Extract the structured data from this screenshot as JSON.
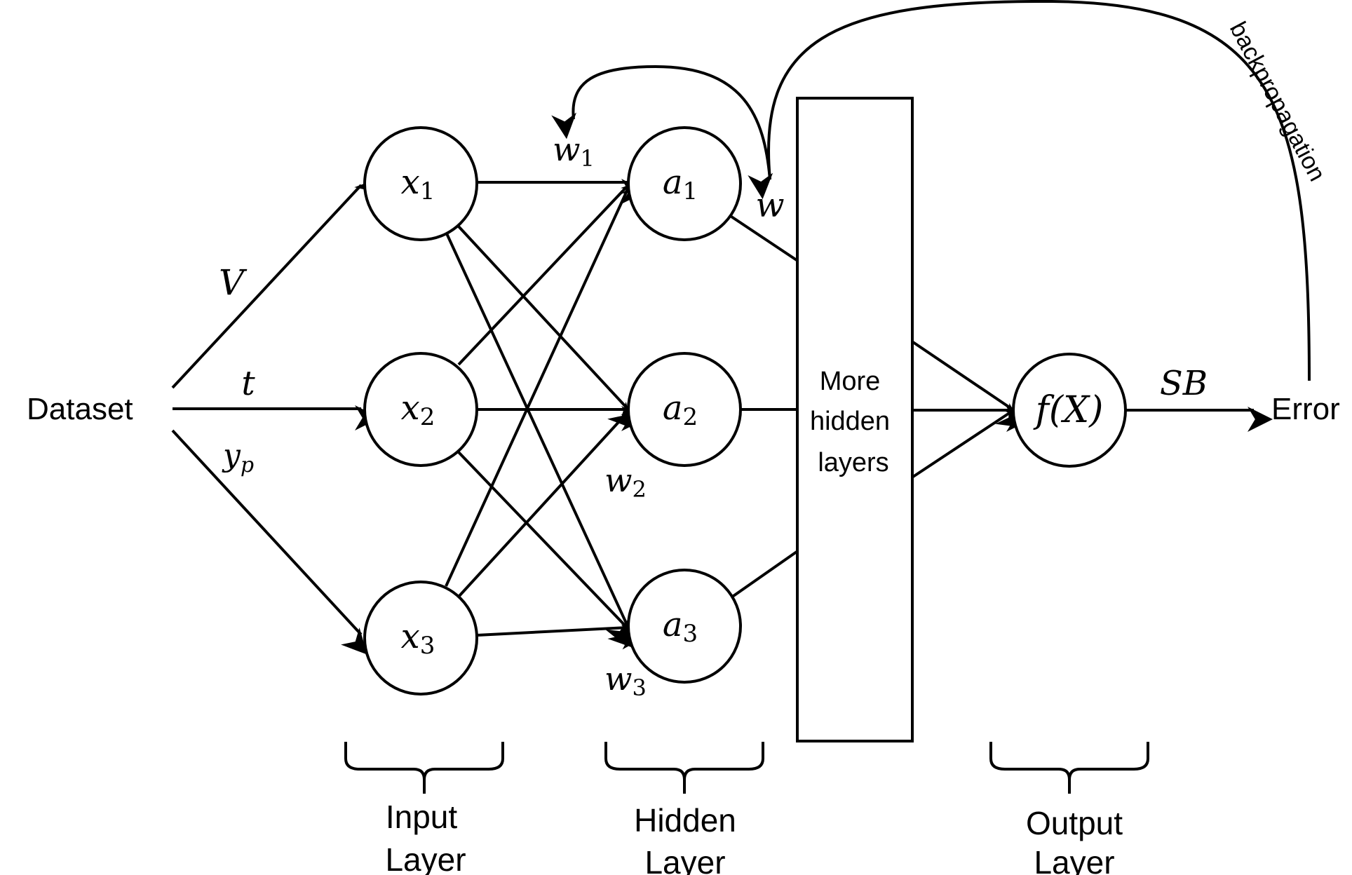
{
  "source_label": "Dataset",
  "input_edges": {
    "v_label": "V",
    "t_label": "t",
    "yp_label": {
      "base": "y",
      "sub": "p"
    }
  },
  "input_nodes": [
    {
      "base": "x",
      "sub": "1"
    },
    {
      "base": "x",
      "sub": "2"
    },
    {
      "base": "x",
      "sub": "3"
    }
  ],
  "hidden_nodes": [
    {
      "base": "a",
      "sub": "1"
    },
    {
      "base": "a",
      "sub": "2"
    },
    {
      "base": "a",
      "sub": "3"
    }
  ],
  "weights": {
    "w1": {
      "base": "w",
      "sub": "1"
    },
    "w2": {
      "base": "w",
      "sub": "2"
    },
    "w3": {
      "base": "w",
      "sub": "3"
    },
    "w": "w"
  },
  "more_hidden": {
    "line1": "More",
    "line2": "hidden",
    "line3": "layers"
  },
  "output_node": "f(X)",
  "output_edge_label": "SB",
  "error_label": "Error",
  "backprop_label": "backpropagation",
  "layers": {
    "input": {
      "line1": "Input",
      "line2": "Layer"
    },
    "hidden": {
      "line1": "Hidden",
      "line2": "Layer"
    },
    "output": {
      "line1": "Output",
      "line2": "Layer"
    }
  },
  "colors": {
    "stroke": "#000000",
    "background": "#ffffff"
  }
}
